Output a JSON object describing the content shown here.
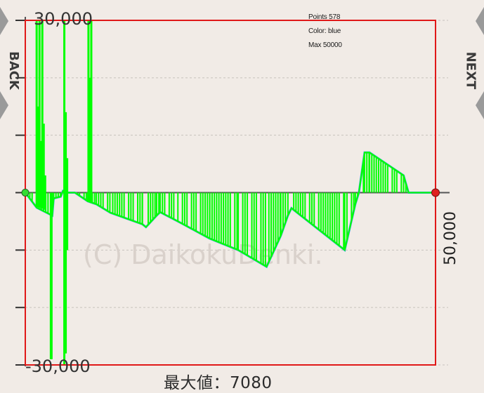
{
  "info": {
    "points_label": "Points 578",
    "color_label": "Color: blue",
    "max_label": "Max 50000"
  },
  "nav": {
    "back_label": "BACK",
    "next_label": "NEXT"
  },
  "footer": {
    "text": "最大値：7080"
  },
  "watermark": {
    "text": "(C) DaikokuDenki."
  },
  "colors": {
    "background": "#f1ebe6",
    "frame": "#e01818",
    "signal": "#00ff00",
    "envelope": "#3aa0e8",
    "start_marker": "#33dd33",
    "end_marker": "#e02020",
    "grid": "#c7c2bd"
  },
  "chart_data": {
    "type": "line",
    "title": "",
    "xlabel": "",
    "ylabel": "",
    "xlim": [
      0,
      578
    ],
    "ylim": [
      -30000,
      30000
    ],
    "y_tick_labels": [
      "30,000",
      "-30,000"
    ],
    "right_axis_label": "50,000",
    "grid": true,
    "series": [
      {
        "points": [
          [
            0,
            0
          ],
          [
            16,
            -2600
          ],
          [
            38,
            -4000
          ],
          [
            40,
            -1000
          ],
          [
            50,
            -700
          ],
          [
            53,
            300
          ],
          [
            60,
            0
          ],
          [
            70,
            0
          ],
          [
            88,
            -1500
          ],
          [
            100,
            -2000
          ],
          [
            120,
            -3500
          ],
          [
            165,
            -5500
          ],
          [
            170,
            -6000
          ],
          [
            185,
            -4000
          ],
          [
            190,
            -3400
          ],
          [
            215,
            -5000
          ],
          [
            260,
            -8000
          ],
          [
            300,
            -10000
          ],
          [
            340,
            -12900
          ],
          [
            360,
            -7500
          ],
          [
            370,
            -4000
          ],
          [
            375,
            -2700
          ],
          [
            450,
            -10000
          ],
          [
            465,
            -2000
          ],
          [
            470,
            0
          ],
          [
            478,
            7000
          ],
          [
            485,
            7000
          ],
          [
            533,
            3000
          ],
          [
            540,
            0
          ],
          [
            578,
            0
          ]
        ]
      },
      {
        "spikes": [
          {
            "x": 16,
            "lo": -2500,
            "hi": 30000
          },
          {
            "x": 18,
            "lo": -2500,
            "hi": 15000
          },
          {
            "x": 20,
            "lo": -2600,
            "hi": 30000
          },
          {
            "x": 22,
            "lo": -2700,
            "hi": 9000
          },
          {
            "x": 24,
            "lo": -2800,
            "hi": 30000
          },
          {
            "x": 26,
            "lo": -2900,
            "hi": 12000
          },
          {
            "x": 28,
            "lo": -3000,
            "hi": 3000
          },
          {
            "x": 36,
            "lo": -29000,
            "hi": 0
          },
          {
            "x": 37,
            "lo": -29000,
            "hi": -2000
          },
          {
            "x": 55,
            "lo": -30000,
            "hi": 30000
          },
          {
            "x": 57,
            "lo": -28000,
            "hi": 14000
          },
          {
            "x": 59,
            "lo": -10000,
            "hi": 6000
          },
          {
            "x": 89,
            "lo": -1500,
            "hi": 30000
          },
          {
            "x": 91,
            "lo": -1600,
            "hi": 20000
          },
          {
            "x": 93,
            "lo": -1700,
            "hi": 30000
          }
        ]
      }
    ]
  }
}
